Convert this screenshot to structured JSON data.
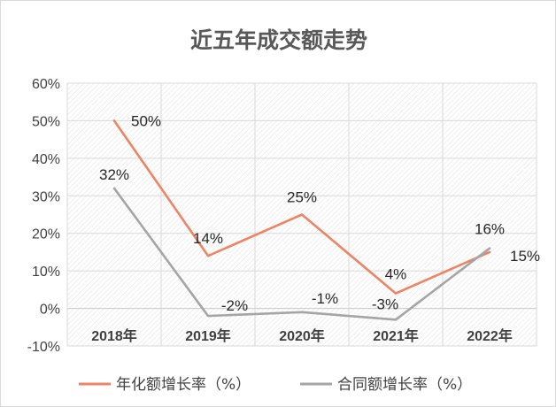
{
  "chart_data": {
    "type": "line",
    "title": "近五年成交额走势",
    "categories": [
      "2018年",
      "2019年",
      "2020年",
      "2021年",
      "2022年"
    ],
    "ylim": [
      -10,
      60
    ],
    "yticks": [
      -10,
      0,
      10,
      20,
      30,
      40,
      50,
      60
    ],
    "ytick_labels": [
      "-10%",
      "0%",
      "10%",
      "20%",
      "30%",
      "40%",
      "50%",
      "60%"
    ],
    "grid": true,
    "legend_position": "bottom",
    "series": [
      {
        "name": "年化额增长率（%）",
        "color": "#ed8465",
        "values": [
          50,
          14,
          25,
          4,
          15
        ],
        "labels": [
          "50%",
          "14%",
          "25%",
          "4%",
          "15%"
        ]
      },
      {
        "name": "合同额增长率（%）",
        "color": "#a5a5a5",
        "values": [
          32,
          -2,
          -1,
          -3,
          16
        ],
        "labels": [
          "32%",
          "-2%",
          "-1%",
          "-3%",
          "16%"
        ]
      }
    ]
  }
}
